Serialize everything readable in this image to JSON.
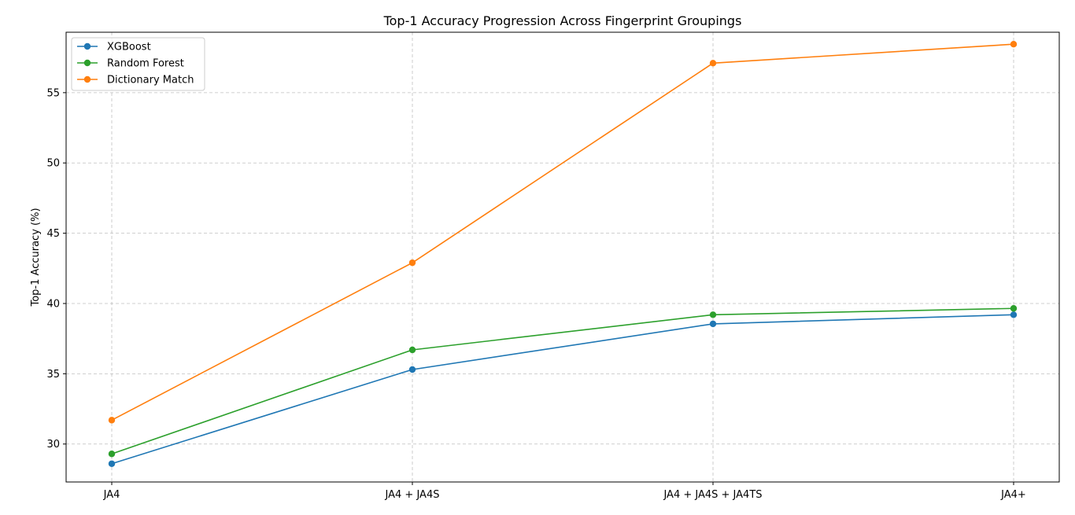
{
  "chart_data": {
    "type": "line",
    "title": "Top-1 Accuracy Progression Across Fingerprint Groupings",
    "xlabel": "",
    "ylabel": "Top-1 Accuracy (%)",
    "categories": [
      "JA4",
      "JA4 + JA4S",
      "JA4 + JA4S + JA4TS",
      "JA4+"
    ],
    "ylim": [
      27.3,
      59.3
    ],
    "yticks": [
      30,
      35,
      40,
      45,
      50,
      55
    ],
    "grid": true,
    "legend_position": "top-left",
    "series": [
      {
        "name": "XGBoost",
        "color": "#1f77b4",
        "values": [
          28.6,
          35.3,
          38.55,
          39.2
        ]
      },
      {
        "name": "Random Forest",
        "color": "#2ca02c",
        "values": [
          29.3,
          36.7,
          39.2,
          39.65
        ]
      },
      {
        "name": "Dictionary Match",
        "color": "#ff7f0e",
        "values": [
          31.7,
          42.9,
          57.1,
          58.45
        ]
      }
    ]
  }
}
